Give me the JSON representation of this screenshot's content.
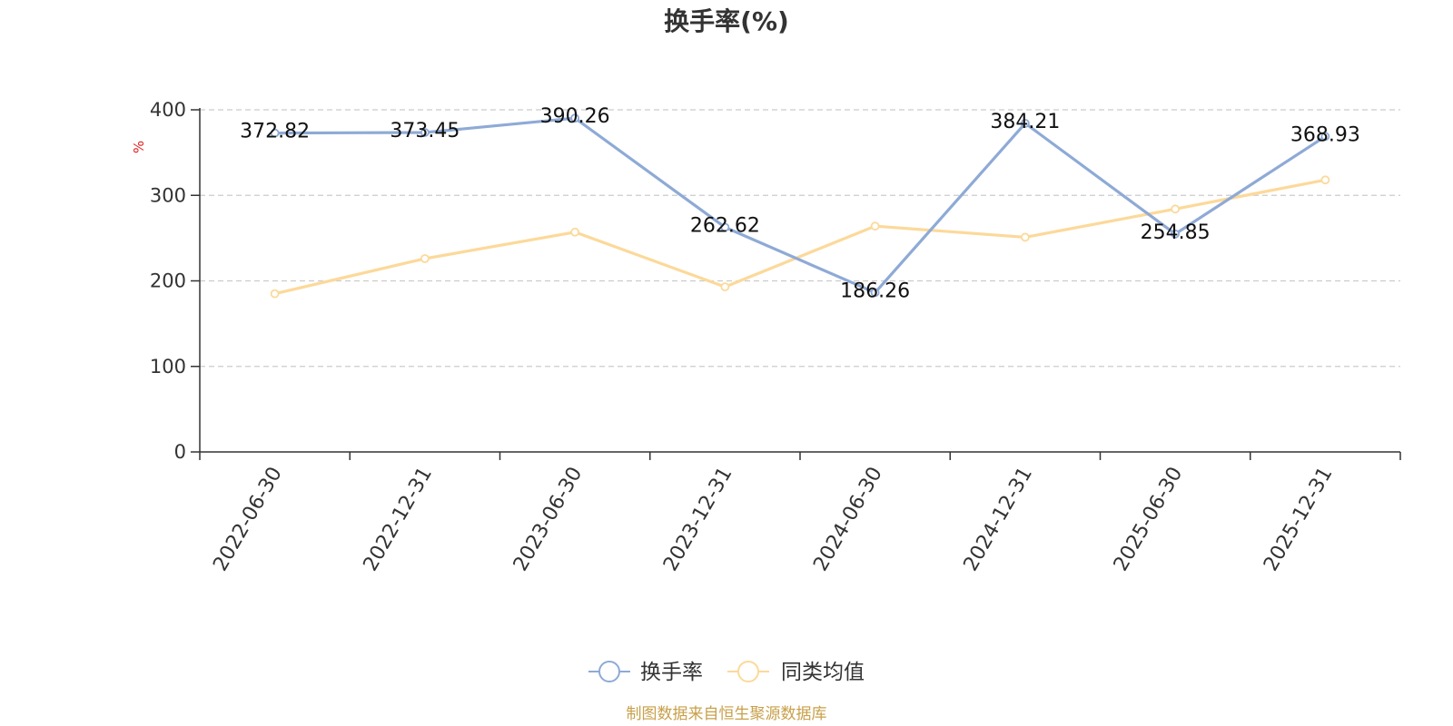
{
  "chart_data": {
    "type": "line",
    "title": "换手率(%)",
    "ylabel": "%",
    "xlabel": "",
    "categories": [
      "2022-06-30",
      "2022-12-31",
      "2023-06-30",
      "2023-12-31",
      "2024-06-30",
      "2024-12-31",
      "2025-06-30",
      "2025-12-31"
    ],
    "ylim": [
      0,
      400
    ],
    "yticks": [
      0,
      100,
      200,
      300,
      400
    ],
    "grid": true,
    "legend_position": "bottom-center",
    "series": [
      {
        "name": "换手率",
        "color": "#8eaad6",
        "values": [
          372.82,
          373.45,
          390.26,
          262.62,
          186.26,
          384.21,
          254.85,
          368.93
        ],
        "data_labels": [
          "372.82",
          "373.45",
          "390.26",
          "262.62",
          "186.26",
          "384.21",
          "254.85",
          "368.93"
        ]
      },
      {
        "name": "同类均值",
        "color": "#fcd99a",
        "values": [
          185,
          226,
          257,
          193,
          264,
          251,
          284,
          318
        ]
      }
    ],
    "source": "制图数据来自恒生聚源数据库"
  }
}
